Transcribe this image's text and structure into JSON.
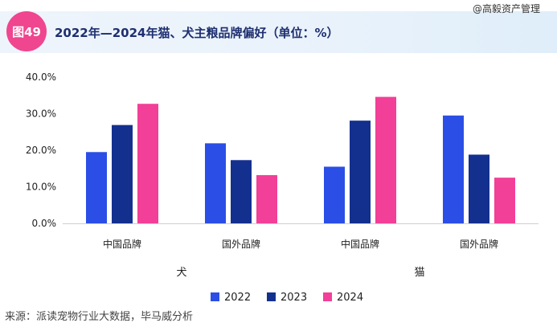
{
  "header": {
    "badge": "图49",
    "title": "2022年—2024年猫、犬主粮品牌偏好（单位：%）",
    "watermark": "@高毅资产管理"
  },
  "source": "来源：派读宠物行业大数据，毕马威分析",
  "chart_data": {
    "type": "bar",
    "title": "2022年—2024年猫、犬主粮品牌偏好（单位：%）",
    "categories": [
      "中国品牌",
      "国外品牌",
      "中国品牌",
      "国外品牌"
    ],
    "groups": [
      {
        "label": "犬",
        "categories": [
          "中国品牌",
          "国外品牌"
        ]
      },
      {
        "label": "猫",
        "categories": [
          "中国品牌",
          "国外品牌"
        ]
      }
    ],
    "series": [
      {
        "name": "2022",
        "color": "#2b4ee6",
        "values": [
          19.5,
          21.9,
          15.5,
          29.5
        ]
      },
      {
        "name": "2023",
        "color": "#14308f",
        "values": [
          26.9,
          17.3,
          28.1,
          18.8
        ]
      },
      {
        "name": "2024",
        "color": "#f23f97",
        "values": [
          32.7,
          13.2,
          34.6,
          12.5
        ]
      }
    ],
    "ylim": [
      0,
      40
    ],
    "yticks": [
      0,
      10,
      20,
      30,
      40
    ],
    "ytick_labels": [
      "0.0%",
      "10.0%",
      "20.0%",
      "30.0%",
      "40.0%"
    ],
    "xlabel": "",
    "ylabel": "",
    "legend_position": "bottom"
  }
}
